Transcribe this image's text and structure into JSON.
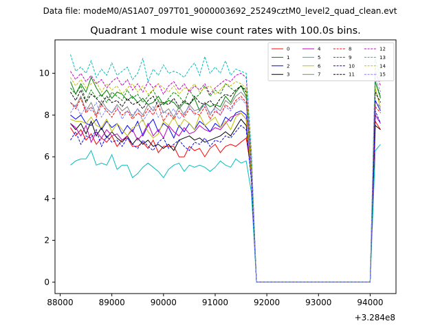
{
  "suptitle": "Data file: modeM0/AS1A07_097T01_9000003692_25249cztM0_level2_quad_clean.evt",
  "chart_data": {
    "type": "line",
    "title": "Quadrant 1 module wise count rates with 100.0s bins.",
    "xlabel": "",
    "ylabel": "",
    "x_offset_label": "+3.284e8",
    "xlim": [
      87900,
      94500
    ],
    "ylim": [
      -0.55,
      11.6
    ],
    "xticks": [
      88000,
      89000,
      90000,
      91000,
      92000,
      93000,
      94000
    ],
    "xtick_labels": [
      "88000",
      "89000",
      "90000",
      "91000",
      "92000",
      "93000",
      "94000"
    ],
    "yticks": [
      0,
      2,
      4,
      6,
      8,
      10
    ],
    "ytick_labels": [
      "0",
      "2",
      "4",
      "6",
      "8",
      "10"
    ],
    "grid": false,
    "legend_location": "top-right",
    "legend_columns": 4,
    "x": [
      88200,
      88300,
      88400,
      88500,
      88600,
      88700,
      88800,
      88900,
      89000,
      89100,
      89200,
      89300,
      89400,
      89500,
      89600,
      89700,
      89800,
      89900,
      90000,
      90100,
      90200,
      90300,
      90400,
      90500,
      90600,
      90700,
      90800,
      90900,
      91000,
      91100,
      91200,
      91300,
      91400,
      91500,
      91600,
      91700,
      91800,
      94000,
      94100,
      94200
    ],
    "series": [
      {
        "name": "0",
        "color": "#ff0000",
        "dash": "solid",
        "values": [
          7.4,
          7.0,
          7.3,
          6.8,
          7.1,
          6.6,
          6.9,
          6.7,
          7.0,
          6.5,
          6.8,
          6.9,
          6.5,
          6.5,
          6.7,
          6.4,
          6.8,
          6.2,
          6.5,
          6.5,
          6.5,
          6.0,
          6.0,
          6.5,
          6.3,
          6.4,
          6.0,
          6.4,
          6.6,
          6.2,
          6.5,
          6.6,
          6.5,
          6.7,
          6.9,
          5.3,
          0,
          0,
          7.7,
          7.3
        ]
      },
      {
        "name": "1",
        "color": "#008000",
        "dash": "solid",
        "values": [
          9.6,
          9.0,
          9.5,
          9.1,
          9.8,
          9.3,
          8.9,
          9.2,
          8.8,
          9.1,
          9.0,
          8.7,
          8.9,
          8.6,
          8.8,
          8.5,
          8.6,
          8.9,
          8.5,
          8.7,
          8.6,
          8.3,
          8.6,
          8.5,
          8.8,
          8.2,
          8.6,
          8.4,
          8.5,
          8.4,
          8.9,
          8.6,
          9.1,
          9.4,
          8.9,
          5.4,
          0,
          0,
          9.6,
          8.8
        ]
      },
      {
        "name": "2",
        "color": "#0000ff",
        "dash": "solid",
        "values": [
          8.0,
          7.8,
          8.0,
          7.6,
          7.5,
          7.8,
          7.3,
          7.7,
          7.4,
          7.6,
          7.1,
          7.5,
          7.2,
          7.7,
          7.0,
          7.5,
          7.8,
          7.2,
          7.6,
          7.4,
          6.9,
          7.5,
          7.2,
          7.6,
          7.3,
          7.7,
          7.5,
          7.2,
          7.6,
          7.4,
          7.9,
          7.7,
          8.1,
          8.2,
          8.0,
          5.1,
          0,
          0,
          8.7,
          8.2
        ]
      },
      {
        "name": "3",
        "color": "#000000",
        "dash": "solid",
        "values": [
          7.6,
          7.3,
          7.6,
          7.1,
          7.7,
          7.0,
          7.4,
          6.9,
          7.2,
          6.9,
          6.7,
          7.0,
          6.6,
          6.9,
          6.6,
          6.8,
          6.5,
          6.6,
          6.4,
          6.6,
          6.3,
          6.8,
          6.9,
          7.0,
          6.8,
          6.9,
          6.7,
          6.8,
          6.9,
          7.0,
          7.2,
          7.0,
          7.4,
          7.8,
          7.5,
          5.0,
          0,
          0,
          7.5,
          7.3
        ]
      },
      {
        "name": "4",
        "color": "#bf00bf",
        "dash": "solid",
        "values": [
          7.6,
          7.4,
          7.0,
          7.5,
          6.7,
          7.2,
          6.9,
          7.3,
          7.0,
          7.1,
          6.8,
          7.0,
          7.3,
          6.8,
          7.1,
          7.6,
          7.0,
          7.3,
          6.9,
          7.5,
          7.2,
          7.0,
          7.4,
          7.1,
          7.2,
          7.5,
          7.3,
          7.2,
          7.4,
          7.3,
          7.6,
          7.9,
          8.0,
          8.1,
          7.8,
          5.1,
          0,
          0,
          8.0,
          7.6
        ]
      },
      {
        "name": "5",
        "color": "#00bfbf",
        "dash": "solid",
        "values": [
          5.6,
          5.8,
          5.9,
          5.9,
          6.3,
          5.6,
          5.7,
          5.6,
          6.1,
          5.4,
          5.6,
          5.6,
          5.0,
          5.2,
          5.5,
          5.7,
          5.5,
          5.3,
          5.0,
          5.4,
          5.6,
          5.7,
          5.3,
          5.6,
          5.5,
          5.6,
          5.5,
          5.3,
          5.5,
          5.8,
          5.6,
          5.5,
          5.9,
          5.7,
          5.8,
          4.3,
          0,
          0,
          6.3,
          6.6
        ]
      },
      {
        "name": "6",
        "color": "#bfbf00",
        "dash": "solid",
        "values": [
          7.8,
          7.7,
          7.7,
          7.6,
          7.9,
          7.5,
          7.4,
          7.8,
          7.2,
          7.6,
          7.3,
          7.0,
          7.4,
          7.5,
          7.8,
          7.2,
          6.9,
          7.1,
          7.7,
          7.5,
          7.9,
          7.4,
          7.8,
          7.6,
          7.3,
          8.0,
          7.5,
          7.7,
          7.9,
          7.4,
          7.7,
          7.3,
          7.9,
          8.1,
          7.8,
          5.2,
          0,
          0,
          9.3,
          8.3
        ]
      },
      {
        "name": "7",
        "color": "#808080",
        "dash": "solid",
        "values": [
          8.6,
          8.4,
          8.9,
          8.2,
          8.6,
          8.0,
          8.7,
          8.3,
          8.1,
          8.5,
          8.2,
          8.4,
          7.9,
          8.3,
          8.0,
          8.5,
          8.2,
          8.7,
          8.1,
          8.3,
          7.9,
          8.4,
          8.0,
          8.5,
          8.2,
          8.3,
          8.6,
          8.0,
          8.4,
          8.2,
          8.7,
          8.5,
          8.9,
          9.1,
          8.8,
          5.7,
          0,
          0,
          8.6,
          8.4
        ]
      },
      {
        "name": "8",
        "color": "#ff0000",
        "dash": "dashed",
        "values": [
          8.6,
          8.3,
          8.8,
          8.1,
          8.4,
          7.9,
          8.5,
          8.2,
          7.9,
          8.3,
          8.0,
          8.2,
          7.8,
          8.1,
          7.9,
          8.3,
          8.0,
          8.5,
          7.7,
          8.1,
          7.8,
          8.2,
          7.9,
          8.3,
          8.1,
          8.0,
          8.4,
          7.8,
          8.2,
          8.0,
          8.5,
          8.3,
          8.7,
          8.9,
          8.6,
          5.5,
          0,
          0,
          8.4,
          8.1
        ]
      },
      {
        "name": "9",
        "color": "#008000",
        "dash": "dashed",
        "values": [
          9.3,
          9.0,
          9.4,
          8.7,
          9.2,
          8.8,
          9.0,
          8.6,
          9.1,
          8.9,
          8.7,
          9.2,
          8.8,
          9.0,
          8.6,
          8.9,
          9.2,
          8.7,
          8.5,
          8.8,
          9.1,
          8.9,
          8.6,
          9.2,
          8.8,
          9.0,
          9.4,
          8.9,
          9.2,
          9.0,
          9.5,
          9.3,
          9.1,
          9.4,
          9.2,
          5.8,
          0,
          0,
          9.6,
          8.9
        ]
      },
      {
        "name": "10",
        "color": "#0000ff",
        "dash": "dashed",
        "values": [
          6.8,
          7.2,
          6.6,
          7.0,
          6.9,
          7.3,
          6.5,
          7.0,
          6.7,
          6.8,
          6.5,
          6.9,
          6.6,
          6.4,
          6.8,
          6.5,
          6.3,
          6.7,
          6.9,
          6.4,
          6.6,
          6.8,
          6.5,
          6.3,
          6.7,
          6.6,
          6.9,
          6.5,
          6.8,
          6.7,
          7.0,
          6.9,
          7.2,
          7.5,
          7.3,
          4.9,
          0,
          0,
          8.2,
          7.6
        ]
      },
      {
        "name": "11",
        "color": "#000000",
        "dash": "dashed",
        "values": [
          9.1,
          8.7,
          9.2,
          8.6,
          9.0,
          8.8,
          8.5,
          8.9,
          8.6,
          8.7,
          8.4,
          8.8,
          8.5,
          8.6,
          8.3,
          8.7,
          8.9,
          8.4,
          8.6,
          8.5,
          8.8,
          8.4,
          8.7,
          8.5,
          8.9,
          8.6,
          8.5,
          8.7,
          8.4,
          8.8,
          9.0,
          8.9,
          9.2,
          9.4,
          9.1,
          5.7,
          0,
          0,
          9.1,
          8.6
        ]
      },
      {
        "name": "12",
        "color": "#bf00bf",
        "dash": "dashed",
        "values": [
          10.1,
          9.7,
          10.0,
          9.6,
          9.9,
          9.5,
          9.7,
          9.3,
          9.6,
          9.8,
          9.4,
          9.7,
          9.2,
          9.5,
          9.1,
          9.6,
          9.3,
          9.5,
          9.0,
          9.4,
          9.6,
          9.2,
          9.5,
          9.1,
          9.4,
          9.2,
          9.5,
          9.0,
          9.3,
          9.5,
          9.7,
          9.6,
          9.9,
          10.0,
          9.8,
          6.1,
          0,
          0,
          10.1,
          9.4
        ]
      },
      {
        "name": "13",
        "color": "#00bfbf",
        "dash": "dashed",
        "values": [
          10.9,
          10.1,
          10.3,
          10.0,
          10.6,
          9.8,
          10.2,
          9.9,
          10.5,
          9.9,
          10.1,
          10.3,
          9.7,
          10.0,
          10.7,
          9.6,
          10.2,
          9.9,
          10.4,
          10.0,
          10.1,
          10.0,
          9.8,
          10.2,
          10.5,
          9.9,
          10.8,
          10.0,
          10.3,
          10.0,
          10.6,
          9.9,
          10.2,
          10.1,
          10.0,
          6.3,
          0,
          0,
          10.7,
          9.8
        ]
      },
      {
        "name": "14",
        "color": "#bfbf00",
        "dash": "dashed",
        "values": [
          9.8,
          9.4,
          9.7,
          9.3,
          9.5,
          9.6,
          9.1,
          9.5,
          9.2,
          9.4,
          9.0,
          9.3,
          9.5,
          9.1,
          9.4,
          9.0,
          9.2,
          9.5,
          9.3,
          9.1,
          9.4,
          9.0,
          9.3,
          9.2,
          9.5,
          9.1,
          9.3,
          9.4,
          9.0,
          9.2,
          9.5,
          9.4,
          9.6,
          9.5,
          9.3,
          5.9,
          0,
          0,
          10.3,
          9.6
        ]
      },
      {
        "name": "15",
        "color": "#8080ff",
        "dash": "dashed",
        "values": [
          8.1,
          8.5,
          8.0,
          8.4,
          8.2,
          8.6,
          7.9,
          8.3,
          8.1,
          8.4,
          7.8,
          8.2,
          8.0,
          8.3,
          7.7,
          8.1,
          8.4,
          7.9,
          8.2,
          8.0,
          8.3,
          7.8,
          8.1,
          8.4,
          8.0,
          8.2,
          8.5,
          8.1,
          8.3,
          8.0,
          8.4,
          8.2,
          8.6,
          8.8,
          8.5,
          5.5,
          0,
          0,
          9.8,
          9.1
        ]
      }
    ]
  }
}
